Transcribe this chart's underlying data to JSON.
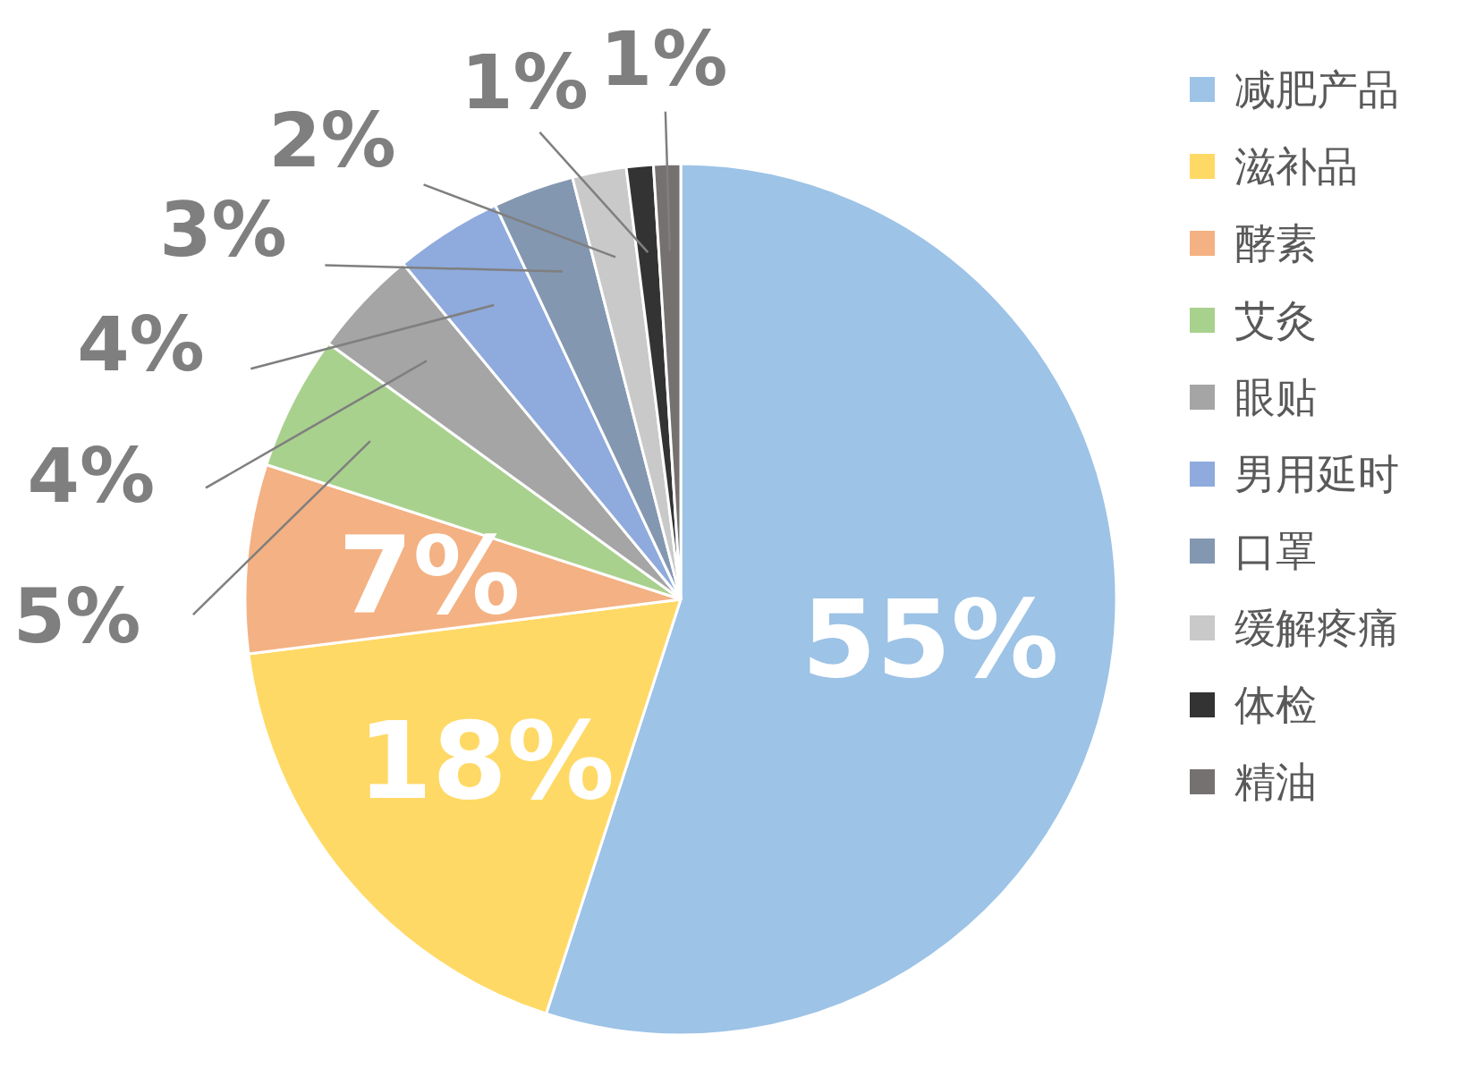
{
  "chart_data": {
    "type": "pie",
    "categories": [
      "减肥产品",
      "滋补品",
      "酵素",
      "艾灸",
      "眼贴",
      "男用延时",
      "口罩",
      "缓解疼痛",
      "体检",
      "精油"
    ],
    "values": [
      55,
      18,
      7,
      5,
      4,
      4,
      3,
      2,
      1,
      1
    ],
    "colors": [
      "#9dc3e6",
      "#ffd966",
      "#f4b183",
      "#a9d18e",
      "#a5a5a5",
      "#8faadc",
      "#8497b0",
      "#c9c9c9",
      "#333333",
      "#767171"
    ],
    "value_labels": [
      "55%",
      "18%",
      "7%",
      "5%",
      "4%",
      "4%",
      "3%",
      "2%",
      "1%",
      "1%"
    ],
    "legend": "right"
  }
}
